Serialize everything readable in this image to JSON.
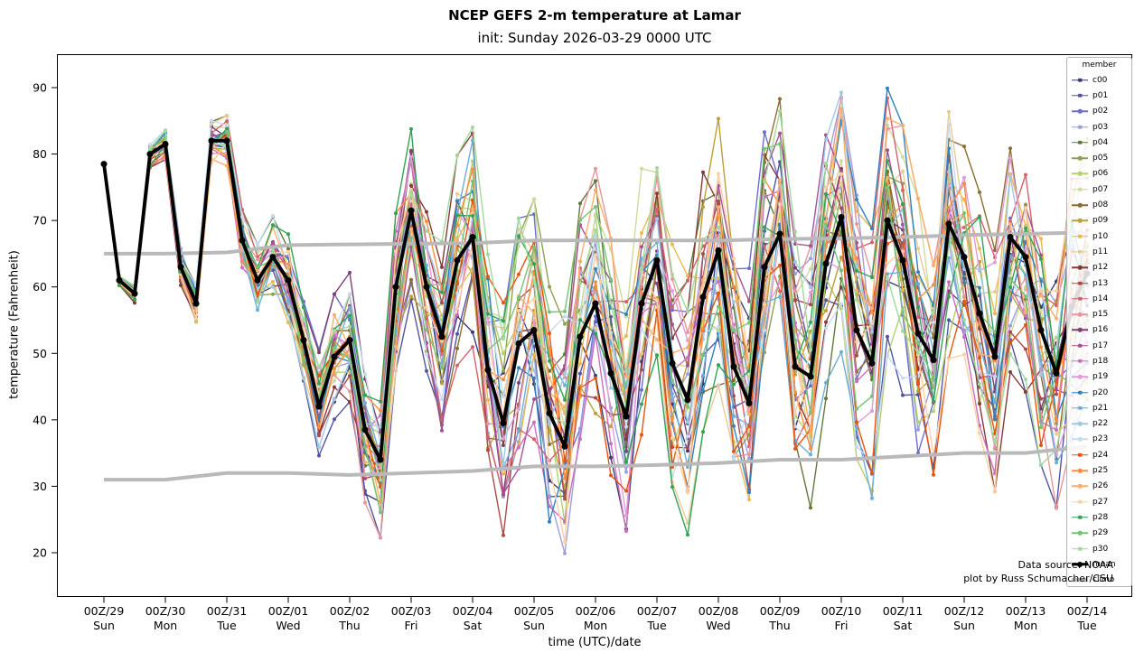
{
  "header": {
    "title": "NCEP GEFS 2-m temperature at Lamar",
    "subtitle": "init: Sunday 2026-03-29 0000 UTC"
  },
  "annotations": {
    "source": "Data source: NOAA",
    "credit": "plot by Russ Schumacher/CSU"
  },
  "legend": {
    "title": "member",
    "mean_label": "mean",
    "climo_label": "climo"
  },
  "chart_data": {
    "type": "line",
    "title": "NCEP GEFS 2-m temperature at Lamar",
    "subtitle": "init: Sunday 2026-03-29 0000 UTC",
    "xlabel": "time (UTC)/date",
    "ylabel": "temperature (Fahrenheit)",
    "ylim": [
      13.3,
      95
    ],
    "y_ticks": [
      20,
      30,
      40,
      50,
      60,
      70,
      80,
      90
    ],
    "x_ticks": [
      {
        "utc": "00Z/29",
        "day": "Sun"
      },
      {
        "utc": "00Z/30",
        "day": "Mon"
      },
      {
        "utc": "00Z/31",
        "day": "Tue"
      },
      {
        "utc": "00Z/01",
        "day": "Wed"
      },
      {
        "utc": "00Z/02",
        "day": "Thu"
      },
      {
        "utc": "00Z/03",
        "day": "Fri"
      },
      {
        "utc": "00Z/04",
        "day": "Sat"
      },
      {
        "utc": "00Z/05",
        "day": "Sun"
      },
      {
        "utc": "00Z/06",
        "day": "Mon"
      },
      {
        "utc": "00Z/07",
        "day": "Tue"
      },
      {
        "utc": "00Z/08",
        "day": "Wed"
      },
      {
        "utc": "00Z/09",
        "day": "Thu"
      },
      {
        "utc": "00Z/10",
        "day": "Fri"
      },
      {
        "utc": "00Z/11",
        "day": "Sat"
      },
      {
        "utc": "00Z/12",
        "day": "Sun"
      },
      {
        "utc": "00Z/13",
        "day": "Mon"
      },
      {
        "utc": "00Z/14",
        "day": "Tue"
      }
    ],
    "time_step_hours": 6,
    "mean": [
      78.5,
      61,
      59,
      80,
      81.5,
      63,
      57.5,
      82,
      82,
      67,
      61,
      64.5,
      61,
      52,
      42,
      49.5,
      52,
      38.5,
      34,
      60,
      71.5,
      60,
      52.5,
      64,
      67.5,
      47.5,
      39.5,
      51.5,
      53.5,
      41,
      36,
      52.5,
      57.5,
      47,
      40.5,
      57.5,
      64,
      48.5,
      43,
      58.5,
      65.5,
      48,
      42.5,
      63,
      68,
      48,
      46.5,
      63.5,
      70.5,
      53.5,
      48.5,
      70,
      64,
      53,
      49,
      69.5,
      64.5,
      56,
      49.5,
      67.5,
      64.5,
      53.5,
      47,
      57,
      62
    ],
    "climo_upper": [
      65,
      65,
      65.2,
      66.3,
      66.4,
      66.5,
      66.6,
      67,
      67,
      67,
      67,
      67.2,
      67.3,
      67.5,
      67.8,
      68,
      68.2
    ],
    "climo_lower": [
      31,
      31,
      32,
      32,
      31.7,
      32,
      32.3,
      33,
      33,
      33.2,
      33.5,
      34,
      34,
      34.5,
      35,
      35,
      36
    ],
    "ensemble_spread": [
      0.6,
      0.9,
      1.1,
      1.4,
      1.6,
      1.9,
      2.1,
      2.4,
      2.6,
      3.2,
      3.7,
      4.3,
      4.8,
      5.4,
      5.9,
      6.5,
      7,
      7.6,
      8.1,
      8.7,
      9.2,
      9.8,
      10.3,
      10.9,
      11.4,
      12,
      12.5,
      13,
      13.6,
      14,
      14,
      14,
      14,
      14,
      14,
      14,
      14,
      14,
      14,
      14,
      14,
      14,
      14,
      14,
      14,
      14,
      14,
      14,
      14,
      14,
      14,
      14,
      14,
      14,
      14,
      14,
      14,
      14,
      14,
      14,
      14,
      14,
      14,
      14,
      14
    ],
    "mean_color": "#000000",
    "climo_color": "#b9b9b9",
    "members": [
      {
        "name": "c00",
        "color": "#393b79"
      },
      {
        "name": "p01",
        "color": "#5254a3"
      },
      {
        "name": "p02",
        "color": "#6b6ecf"
      },
      {
        "name": "p03",
        "color": "#9c9ede"
      },
      {
        "name": "p04",
        "color": "#637939"
      },
      {
        "name": "p05",
        "color": "#8ca252"
      },
      {
        "name": "p06",
        "color": "#b5cf6b"
      },
      {
        "name": "p07",
        "color": "#cedb9c"
      },
      {
        "name": "p08",
        "color": "#8c6d31"
      },
      {
        "name": "p09",
        "color": "#bd9e39"
      },
      {
        "name": "p10",
        "color": "#e7ba52"
      },
      {
        "name": "p11",
        "color": "#e7cb94"
      },
      {
        "name": "p12",
        "color": "#843c39"
      },
      {
        "name": "p13",
        "color": "#ad494a"
      },
      {
        "name": "p14",
        "color": "#d6616b"
      },
      {
        "name": "p15",
        "color": "#e7969c"
      },
      {
        "name": "p16",
        "color": "#7b4173"
      },
      {
        "name": "p17",
        "color": "#a55194"
      },
      {
        "name": "p18",
        "color": "#ce6dbd"
      },
      {
        "name": "p19",
        "color": "#de9ed6"
      },
      {
        "name": "p20",
        "color": "#3182bd"
      },
      {
        "name": "p21",
        "color": "#6baed6"
      },
      {
        "name": "p22",
        "color": "#9ecae1"
      },
      {
        "name": "p23",
        "color": "#c6dbef"
      },
      {
        "name": "p24",
        "color": "#e6550d"
      },
      {
        "name": "p25",
        "color": "#fd8d3c"
      },
      {
        "name": "p26",
        "color": "#fdae6b"
      },
      {
        "name": "p27",
        "color": "#fdd0a2"
      },
      {
        "name": "p28",
        "color": "#31a354"
      },
      {
        "name": "p29",
        "color": "#74c476"
      },
      {
        "name": "p30",
        "color": "#a1d99b"
      }
    ]
  }
}
